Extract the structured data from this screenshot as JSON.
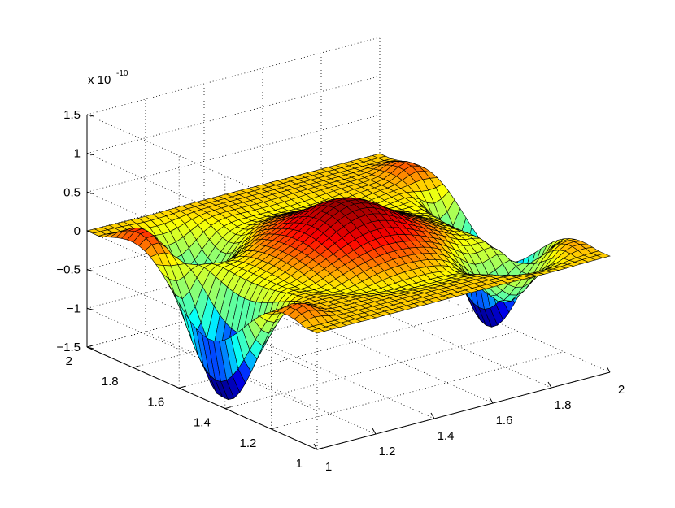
{
  "chart_data": {
    "type": "surface",
    "title": "",
    "xlabel": "",
    "ylabel": "",
    "zlabel": "",
    "xlim": [
      1,
      2
    ],
    "ylim": [
      1,
      2
    ],
    "zlim": [
      -1.5,
      1.5
    ],
    "z_scale_label": "x 10",
    "z_scale_exponent": "-10",
    "x_ticks": [
      "1",
      "1.2",
      "1.4",
      "1.6",
      "1.8",
      "2"
    ],
    "y_ticks": [
      "1",
      "1.2",
      "1.4",
      "1.6",
      "1.8",
      "2"
    ],
    "z_ticks": [
      "1.5",
      "1",
      "0.5",
      "0",
      "−0.5",
      "−1",
      "−1.5"
    ],
    "x_tick_values": [
      1,
      1.2,
      1.4,
      1.6,
      1.8,
      2
    ],
    "y_tick_values": [
      1,
      1.2,
      1.4,
      1.6,
      1.8,
      2
    ],
    "z_tick_values": [
      1.5,
      1,
      0.5,
      0,
      -0.5,
      -1,
      -1.5
    ],
    "grid": true,
    "colormap": "jet",
    "colormap_stops": [
      "#00008f",
      "#0000ff",
      "#00ffff",
      "#80ff80",
      "#ffff00",
      "#ff0000",
      "#800000"
    ],
    "edge_color": "#000000",
    "grid_resolution": 41,
    "surface_features": {
      "central_bump": {
        "center": [
          1.5,
          1.5
        ],
        "peak": 0.55
      },
      "edge_oscillations": [
        {
          "x": 1.05,
          "y_range": [
            1.05,
            1.95
          ],
          "min": -1.4,
          "max": 0.65
        },
        {
          "x": 1.95,
          "y_range": [
            1.05,
            1.95
          ],
          "min": -1.35,
          "max": 0.4
        }
      ],
      "corner_dips": [
        {
          "center": [
            1.2,
            1.8
          ],
          "min": -0.7
        },
        {
          "center": [
            1.8,
            1.2
          ],
          "min": -0.65
        }
      ]
    }
  }
}
